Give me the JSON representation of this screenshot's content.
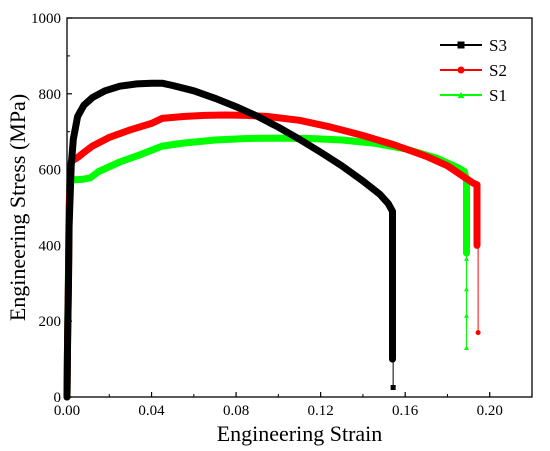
{
  "chart_data": {
    "type": "line",
    "xlabel": "Engineering Strain",
    "ylabel": "Engineering Stress (MPa)",
    "xlim": [
      0,
      0.22
    ],
    "ylim": [
      0,
      1000
    ],
    "x_ticks": [
      0.0,
      0.04,
      0.08,
      0.12,
      0.16,
      0.2
    ],
    "x_tick_labels": [
      "0.00",
      "0.04",
      "0.08",
      "0.12",
      "0.16",
      "0.20"
    ],
    "y_ticks": [
      0,
      200,
      400,
      600,
      800,
      1000
    ],
    "y_tick_labels": [
      "0",
      "200",
      "400",
      "600",
      "800",
      "1000"
    ],
    "legend_position": "top-right",
    "grid": false,
    "series": [
      {
        "name": "S3",
        "color": "#000000",
        "marker": "square",
        "x": [
          0.0,
          0.0003,
          0.0007,
          0.001,
          0.002,
          0.003,
          0.005,
          0.008,
          0.012,
          0.018,
          0.025,
          0.033,
          0.04,
          0.045,
          0.05,
          0.06,
          0.07,
          0.08,
          0.09,
          0.1,
          0.11,
          0.12,
          0.13,
          0.14,
          0.148,
          0.152,
          0.154,
          0.154,
          0.154,
          0.154
        ],
        "y": [
          0,
          150,
          300,
          450,
          610,
          680,
          740,
          770,
          790,
          808,
          820,
          826,
          828,
          828,
          822,
          808,
          788,
          766,
          741,
          712,
          680,
          646,
          610,
          570,
          535,
          510,
          490,
          470,
          430,
          100
        ],
        "fracture_x": 0.1543,
        "fracture_y": [
          400,
          320,
          255,
          25
        ]
      },
      {
        "name": "S2",
        "color": "#ff0000",
        "marker": "circle",
        "x": [
          0.0,
          0.0003,
          0.0007,
          0.001,
          0.0015,
          0.002,
          0.003,
          0.005,
          0.008,
          0.012,
          0.02,
          0.03,
          0.04,
          0.045,
          0.055,
          0.065,
          0.075,
          0.085,
          0.095,
          0.11,
          0.125,
          0.14,
          0.155,
          0.17,
          0.18,
          0.188,
          0.192,
          0.194,
          0.194,
          0.194
        ],
        "y": [
          0,
          160,
          320,
          480,
          600,
          620,
          625,
          632,
          645,
          662,
          685,
          705,
          722,
          735,
          740,
          743,
          744,
          743,
          740,
          730,
          712,
          690,
          665,
          635,
          610,
          580,
          565,
          560,
          500,
          400
        ],
        "fracture_x": 0.1945,
        "fracture_y": [
          170
        ]
      },
      {
        "name": "S1",
        "color": "#00ff00",
        "marker": "triangle",
        "x": [
          0.0,
          0.0003,
          0.0007,
          0.001,
          0.0015,
          0.002,
          0.004,
          0.008,
          0.011,
          0.015,
          0.025,
          0.035,
          0.045,
          0.055,
          0.07,
          0.085,
          0.1,
          0.115,
          0.13,
          0.145,
          0.16,
          0.175,
          0.185,
          0.188,
          0.189,
          0.189,
          0.189,
          0.189
        ],
        "y": [
          0,
          170,
          340,
          500,
          590,
          575,
          573,
          575,
          578,
          595,
          620,
          640,
          662,
          670,
          678,
          682,
          683,
          682,
          678,
          670,
          655,
          630,
          605,
          595,
          570,
          520,
          450,
          380
        ],
        "fracture_x": 0.189,
        "fracture_y": [
          365,
          285,
          215,
          130
        ]
      }
    ]
  }
}
